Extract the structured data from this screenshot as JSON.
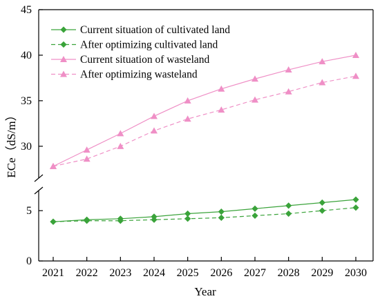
{
  "chart_data": {
    "type": "line",
    "xlabel": "Year",
    "ylabel": "ECe（dS/m）",
    "categories": [
      "2021",
      "2022",
      "2023",
      "2024",
      "2025",
      "2026",
      "2027",
      "2028",
      "2029",
      "2030"
    ],
    "axis_break": true,
    "y_upper": {
      "ylim": [
        26.5,
        45
      ],
      "ticks": [
        "30",
        "35",
        "40",
        "45"
      ]
    },
    "y_lower": {
      "ylim": [
        0,
        7
      ],
      "ticks": [
        "0",
        "5"
      ]
    },
    "legend_position": "top-left",
    "series": [
      {
        "name": "Current situation of cultivated land",
        "color": "#3aa33a",
        "marker": "diamond",
        "dash": false,
        "axis": "lower",
        "values": [
          3.9,
          4.1,
          4.2,
          4.4,
          4.7,
          4.9,
          5.2,
          5.5,
          5.8,
          6.1
        ]
      },
      {
        "name": "After optimizing cultivated land",
        "color": "#3aa33a",
        "marker": "diamond",
        "dash": true,
        "axis": "lower",
        "values": [
          3.9,
          4.0,
          4.0,
          4.1,
          4.2,
          4.3,
          4.5,
          4.7,
          5.0,
          5.3
        ]
      },
      {
        "name": "Current situation of wasteland",
        "color": "#ef8fc6",
        "marker": "triangle",
        "dash": false,
        "axis": "upper",
        "values": [
          27.8,
          29.6,
          31.4,
          33.3,
          35.0,
          36.3,
          37.4,
          38.4,
          39.3,
          40.0
        ]
      },
      {
        "name": "After optimizing wasteland",
        "color": "#ef8fc6",
        "marker": "triangle",
        "dash": true,
        "axis": "upper",
        "values": [
          27.8,
          28.6,
          30.0,
          31.7,
          33.0,
          34.0,
          35.1,
          36.0,
          37.0,
          37.7
        ]
      }
    ]
  }
}
